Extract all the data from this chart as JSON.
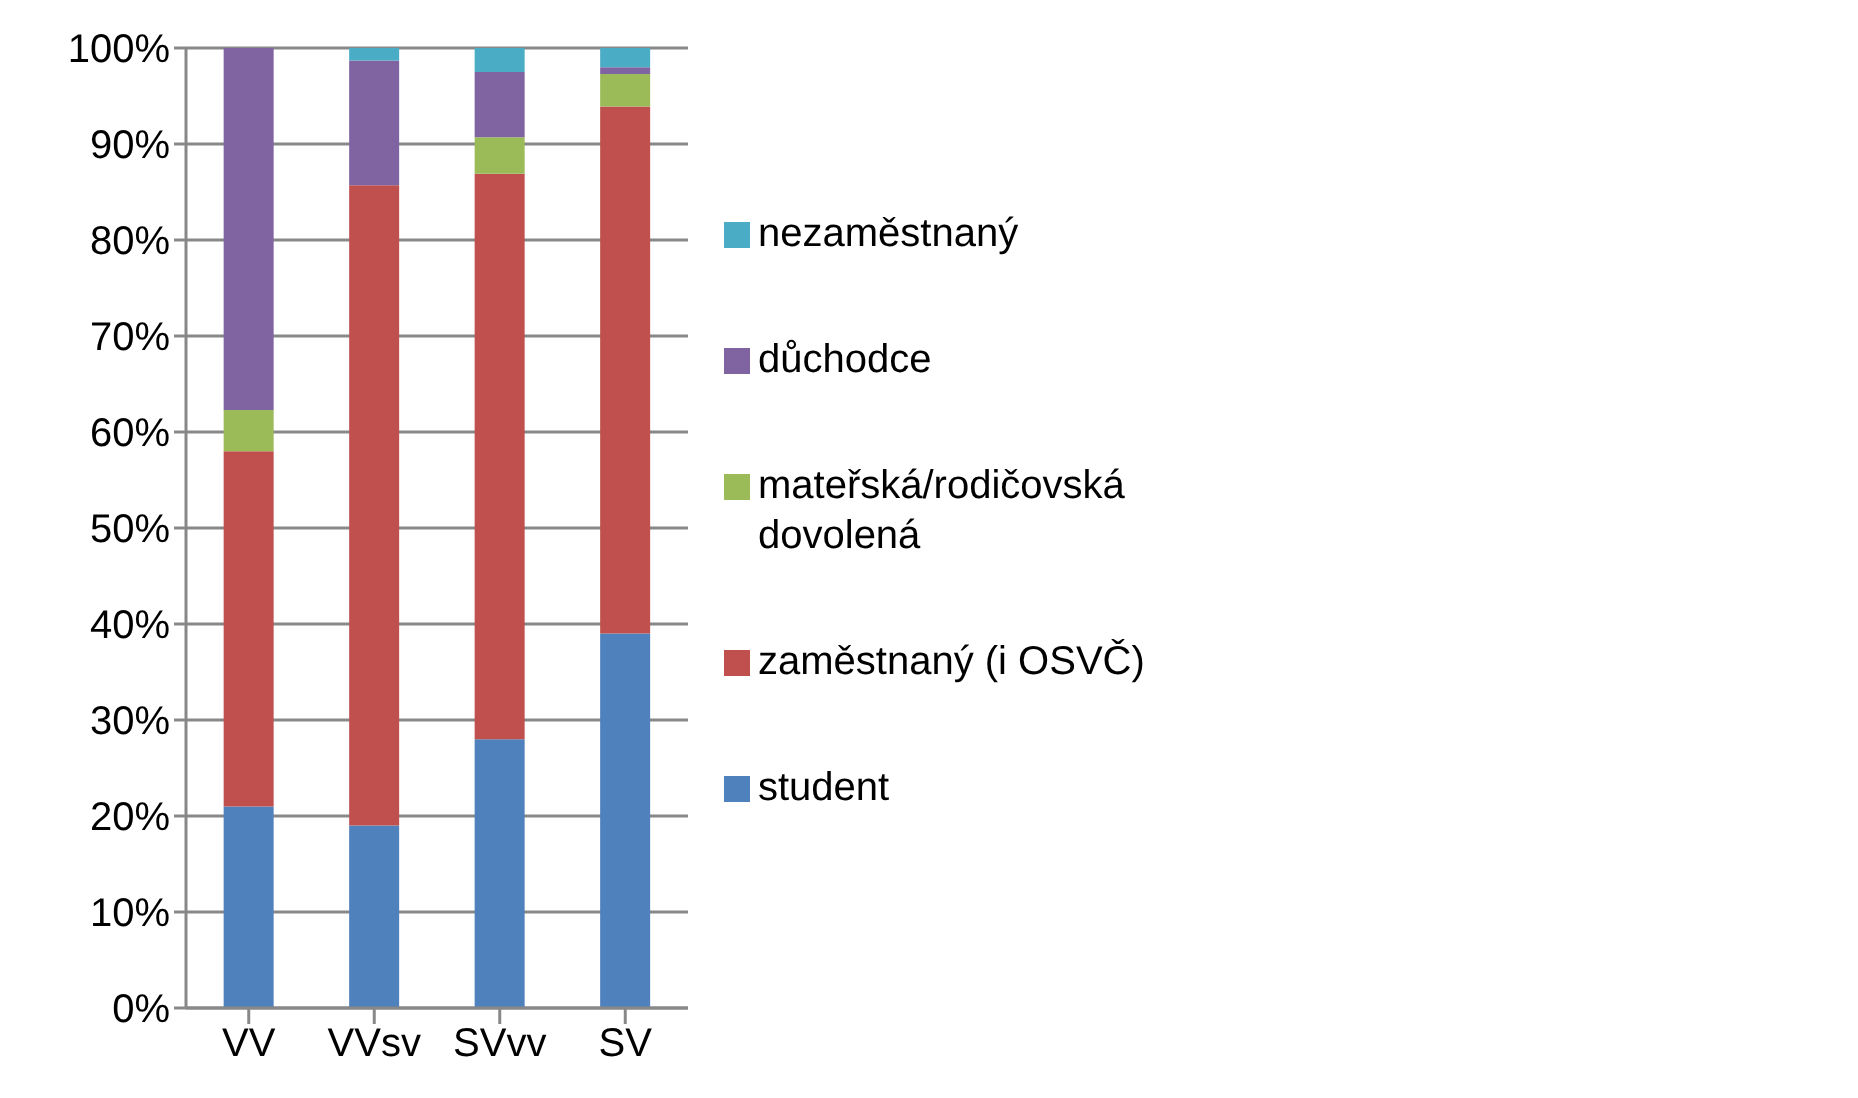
{
  "chart_data": {
    "type": "bar",
    "stacked": true,
    "categories": [
      "VV",
      "VVsv",
      "SVvv",
      "SV"
    ],
    "series": [
      {
        "name": "student",
        "color": "#4f81bd",
        "values": [
          21,
          19,
          28,
          39
        ]
      },
      {
        "name": "zaměstnaný (i OSVČ)",
        "color": "#c0504d",
        "values": [
          37,
          66.7,
          58.9,
          54.9
        ]
      },
      {
        "name": "mateřská/rodičovská dovolená",
        "color": "#9bbb59",
        "values": [
          4.3,
          0,
          3.8,
          3.4
        ]
      },
      {
        "name": "důchodce",
        "color": "#8064a2",
        "values": [
          37.7,
          13,
          6.8,
          0.7
        ]
      },
      {
        "name": "nezaměstnaný",
        "color": "#4bacc6",
        "values": [
          0,
          1.3,
          2.5,
          2
        ]
      }
    ],
    "ylim": [
      0,
      100
    ],
    "yticks": [
      {
        "value": 0,
        "label": "0%"
      },
      {
        "value": 10,
        "label": "10%"
      },
      {
        "value": 20,
        "label": "20%"
      },
      {
        "value": 30,
        "label": "30%"
      },
      {
        "value": 40,
        "label": "40%"
      },
      {
        "value": 50,
        "label": "50%"
      },
      {
        "value": 60,
        "label": "60%"
      },
      {
        "value": 70,
        "label": "70%"
      },
      {
        "value": 80,
        "label": "80%"
      },
      {
        "value": 90,
        "label": "90%"
      },
      {
        "value": 100,
        "label": "100%"
      }
    ],
    "grid": "y",
    "legend": "right"
  }
}
